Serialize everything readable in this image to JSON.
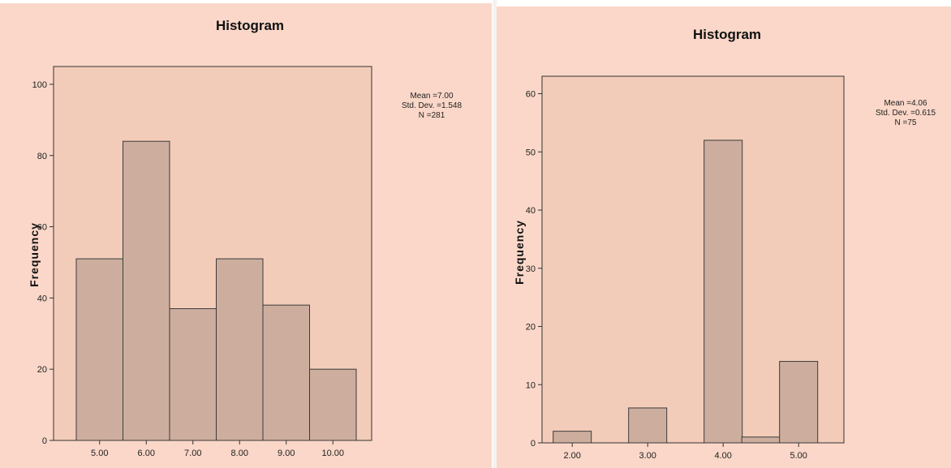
{
  "chart_data": [
    {
      "type": "bar",
      "title": "Histogram",
      "ylabel": "Frequency",
      "xlabel": "",
      "categories": [
        "5.00",
        "6.00",
        "7.00",
        "8.00",
        "9.00",
        "10.00"
      ],
      "values": [
        51,
        84,
        37,
        51,
        38,
        20
      ],
      "ylim": [
        0,
        105
      ],
      "yticks": [
        0,
        20,
        40,
        60,
        80,
        100
      ],
      "stats": [
        "Mean =7.00",
        "Std. Dev. =1.548",
        "N =281"
      ],
      "bar_color": "#cdae9e",
      "plot_color": "#f3ccb9",
      "background": "#fad7c8",
      "grid": false
    },
    {
      "type": "bar",
      "title": "Histogram",
      "ylabel": "Frequency",
      "xlabel": "",
      "x": [
        2.0,
        3.0,
        4.0,
        4.5,
        5.0
      ],
      "categories": [
        "2.00",
        "3.00",
        "4.00",
        "",
        "5.00"
      ],
      "values": [
        2,
        6,
        52,
        1,
        14
      ],
      "xlim": [
        1.6,
        5.6
      ],
      "xticks": [
        "2.00",
        "3.00",
        "4.00",
        "5.00"
      ],
      "ylim": [
        0,
        63
      ],
      "yticks": [
        0,
        10,
        20,
        30,
        40,
        50,
        60
      ],
      "stats": [
        "Mean =4.06",
        "Std. Dev. =0.615",
        "N =75"
      ],
      "bar_color": "#cdae9e",
      "plot_color": "#f3ccb9",
      "background": "#fad7c8",
      "grid": false
    }
  ]
}
